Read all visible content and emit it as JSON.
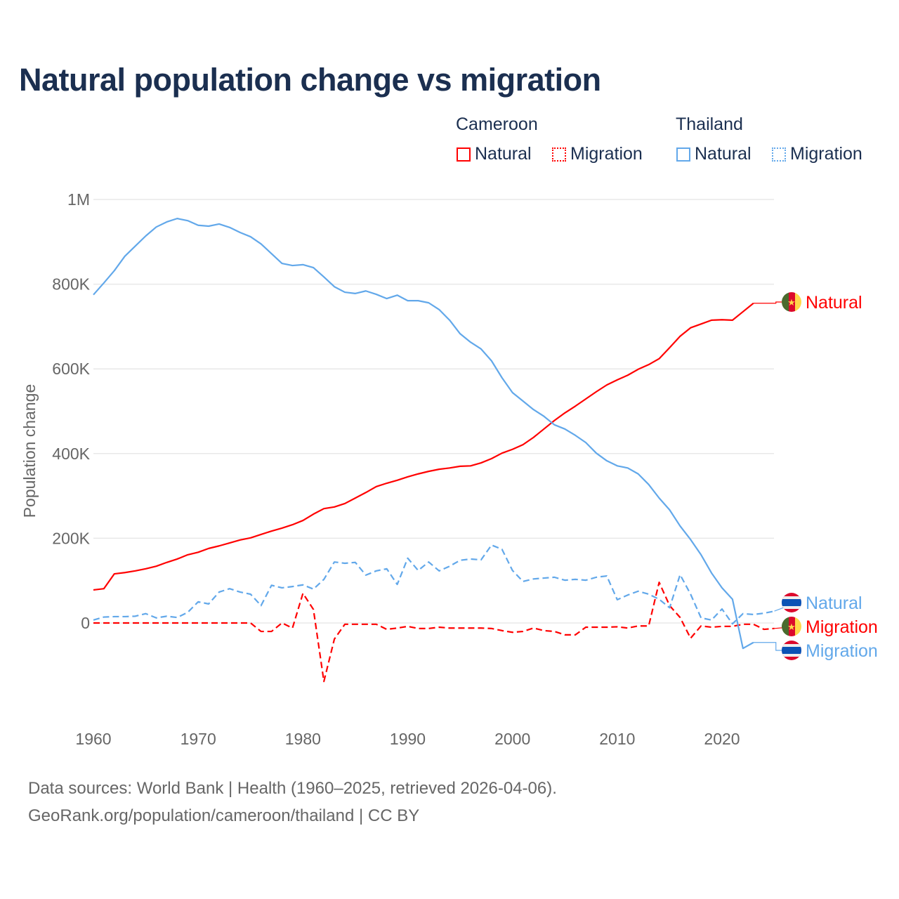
{
  "chart_data": {
    "type": "line",
    "title": "Natural population change vs migration",
    "ylabel": "Population change",
    "xlabel": "",
    "xlim": [
      1960,
      2025
    ],
    "ylim": [
      -200000,
      1000000
    ],
    "x_ticks": [
      1960,
      1970,
      1980,
      1990,
      2000,
      2010,
      2020
    ],
    "x_tick_labels": [
      "1960",
      "1970",
      "1980",
      "1990",
      "2000",
      "2010",
      "2020"
    ],
    "y_ticks": [
      0,
      200000,
      400000,
      600000,
      800000,
      1000000
    ],
    "y_tick_labels": [
      "0",
      "200K",
      "400K",
      "600K",
      "800K",
      "1M"
    ],
    "grid": true,
    "legend": {
      "placement": "top-right",
      "groups": [
        {
          "title": "Cameroon",
          "items": [
            "Natural",
            "Migration"
          ]
        },
        {
          "title": "Thailand",
          "items": [
            "Natural",
            "Migration"
          ]
        }
      ]
    },
    "start_year": 1960,
    "series": [
      {
        "name": "Cameroon Natural",
        "country": "Cameroon",
        "label": "Natural",
        "color": "#ff0000",
        "dash": false,
        "flag": "cameroon",
        "values": [
          78,
          81,
          116,
          119,
          123,
          128,
          134,
          143,
          151,
          161,
          167,
          176,
          182,
          189,
          196,
          201,
          209,
          217,
          224,
          232,
          242,
          257,
          270,
          274,
          282,
          295,
          308,
          322,
          330,
          337,
          345,
          352,
          358,
          363,
          366,
          370,
          371,
          378,
          388,
          401,
          410,
          421,
          438,
          458,
          478,
          496,
          512,
          529,
          546,
          562,
          574,
          585,
          599,
          610,
          624,
          650,
          677,
          697,
          706,
          715,
          716,
          715,
          735,
          755
        ]
      },
      {
        "name": "Cameroon Migration",
        "country": "Cameroon",
        "label": "Migration",
        "color": "#ff0000",
        "dash": true,
        "flag": "cameroon",
        "values": [
          0,
          0,
          0,
          0,
          0,
          0,
          0,
          0,
          0,
          0,
          0,
          0,
          0,
          0,
          0,
          0,
          -20,
          -20,
          0,
          -12,
          70,
          32,
          -138,
          -38,
          -3,
          -3,
          -3,
          -3,
          -15,
          -12,
          -8,
          -13,
          -13,
          -10,
          -12,
          -12,
          -12,
          -12,
          -13,
          -18,
          -22,
          -20,
          -12,
          -18,
          -20,
          -28,
          -28,
          -10,
          -10,
          -10,
          -9,
          -12,
          -7,
          -7,
          96,
          41,
          13,
          -36,
          -7,
          -10,
          -8,
          -8,
          -3,
          -3,
          -15,
          -13
        ]
      },
      {
        "name": "Thailand Natural",
        "country": "Thailand",
        "label": "Natural",
        "color": "#62a8ea",
        "dash": false,
        "flag": "thailand",
        "values": [
          775,
          803,
          832,
          866,
          890,
          914,
          935,
          947,
          955,
          950,
          939,
          937,
          942,
          934,
          922,
          912,
          895,
          872,
          849,
          844,
          846,
          839,
          817,
          794,
          781,
          778,
          784,
          776,
          766,
          774,
          761,
          761,
          756,
          740,
          715,
          683,
          663,
          647,
          619,
          579,
          544,
          524,
          504,
          488,
          468,
          458,
          443,
          426,
          401,
          383,
          371,
          366,
          352,
          327,
          295,
          267,
          229,
          197,
          161,
          118,
          83,
          56,
          -60,
          -46
        ]
      },
      {
        "name": "Thailand Migration",
        "country": "Thailand",
        "label": "Migration",
        "color": "#62a8ea",
        "dash": true,
        "flag": "thailand",
        "values": [
          7,
          14,
          15,
          15,
          16,
          22,
          12,
          16,
          13,
          25,
          50,
          45,
          73,
          81,
          73,
          68,
          41,
          89,
          83,
          86,
          90,
          80,
          103,
          144,
          141,
          143,
          113,
          123,
          128,
          91,
          153,
          124,
          144,
          123,
          134,
          148,
          151,
          149,
          184,
          174,
          124,
          98,
          104,
          106,
          108,
          101,
          103,
          101,
          108,
          111,
          55,
          66,
          75,
          68,
          56,
          36,
          114,
          68,
          12,
          7,
          33,
          -2,
          22,
          20,
          23,
          28
        ]
      }
    ],
    "value_unit": "thousands",
    "end_labels": [
      "Natural",
      "Migration",
      "Migration",
      "Natural"
    ],
    "footer": {
      "line1": "Data sources: World Bank | Health (1960–2025, retrieved 2026-04-06).",
      "line2": "GeoRank.org/population/cameroon/thailand | CC BY"
    }
  }
}
